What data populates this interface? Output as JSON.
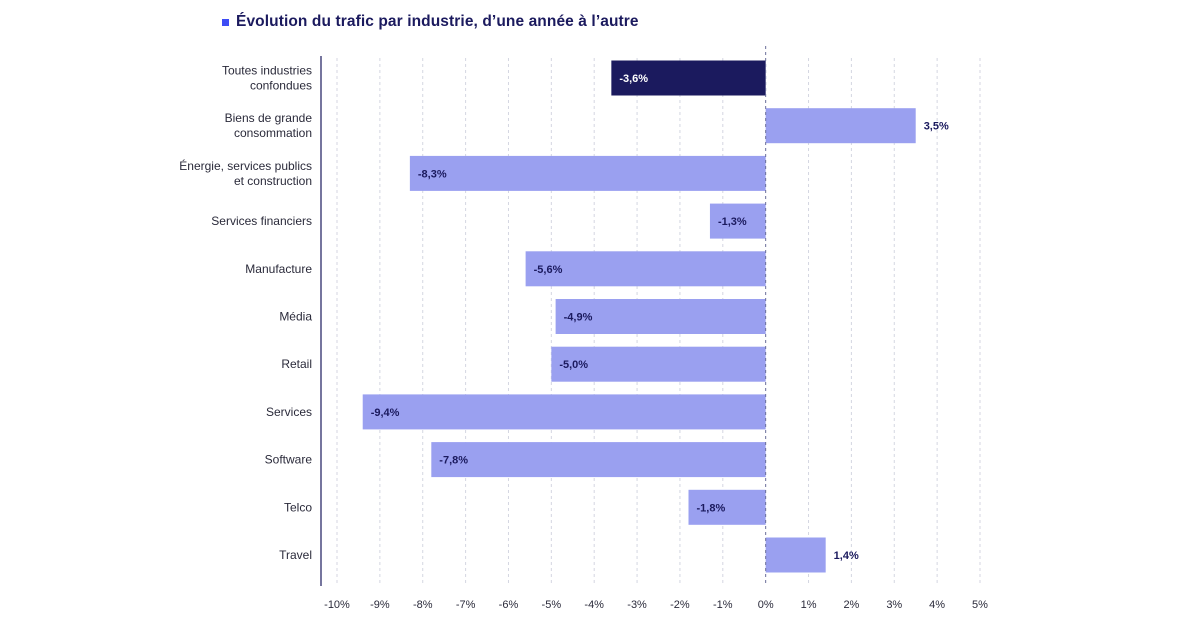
{
  "chart_data": {
    "type": "bar",
    "orientation": "horizontal",
    "title": "Évolution du trafic par industrie, d’une année à l’autre",
    "categories": [
      "Toutes industries confondues",
      "Biens de grande consommation",
      "Énergie, services publics et construction",
      "Services financiers",
      "Manufacture",
      "Média",
      "Retail",
      "Services",
      "Software",
      "Telco",
      "Travel"
    ],
    "category_lines": [
      [
        "Toutes industries",
        "confondues"
      ],
      [
        "Biens de grande",
        "consommation"
      ],
      [
        "Énergie, services publics",
        "et construction"
      ],
      [
        "Services financiers"
      ],
      [
        "Manufacture"
      ],
      [
        "Média"
      ],
      [
        "Retail"
      ],
      [
        "Services"
      ],
      [
        "Software"
      ],
      [
        "Telco"
      ],
      [
        "Travel"
      ]
    ],
    "values": [
      -3.6,
      3.5,
      -8.3,
      -1.3,
      -5.6,
      -4.9,
      -5.0,
      -9.4,
      -7.8,
      -1.8,
      1.4
    ],
    "data_labels": [
      "-3,6%",
      "3,5%",
      "-8,3%",
      "-1,3%",
      "-5,6%",
      "-4,9%",
      "-5,0%",
      "-9,4%",
      "-7,8%",
      "-1,8%",
      "1,4%"
    ],
    "xlim": [
      -10,
      5
    ],
    "xticks": [
      -10,
      -9,
      -8,
      -7,
      -6,
      -5,
      -4,
      -3,
      -2,
      -1,
      0,
      1,
      2,
      3,
      4,
      5
    ],
    "xtick_labels": [
      "-10%",
      "-9%",
      "-8%",
      "-7%",
      "-6%",
      "-5%",
      "-4%",
      "-3%",
      "-2%",
      "-1%",
      "0%",
      "1%",
      "2%",
      "3%",
      "4%",
      "5%"
    ],
    "xlabel": "",
    "ylabel": "",
    "grid": "vertical dashed",
    "highlight_index": 0,
    "colors": {
      "bar": "#9aa0f0",
      "highlight_bar": "#1b1a5e",
      "title_marker": "#3d4cf5",
      "title_text": "#1b1a5e",
      "grid": "#d4d6e2",
      "zero_line": "#6b6f9a",
      "axis": "#1b1a5e"
    }
  }
}
